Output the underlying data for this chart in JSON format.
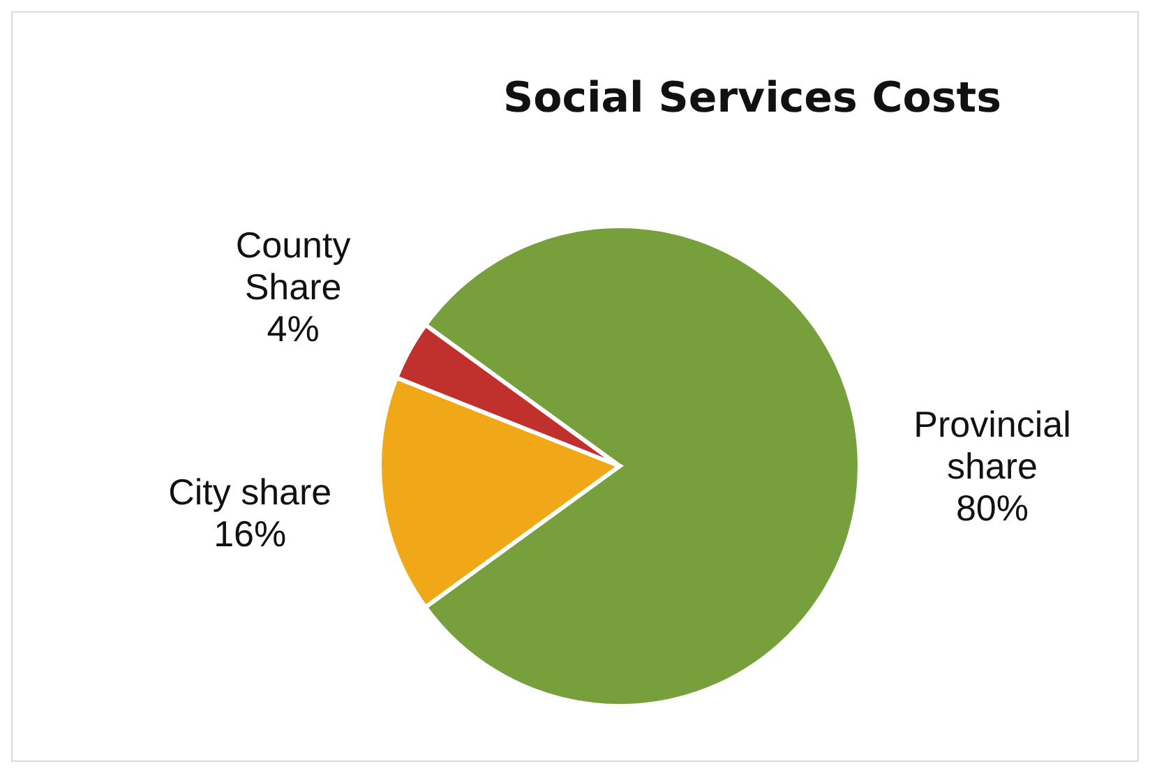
{
  "chart_data": {
    "type": "pie",
    "title": "Social Services Costs",
    "categories": [
      "Provincial share",
      "City share",
      "County Share"
    ],
    "values": [
      80,
      16,
      4
    ],
    "value_labels": [
      "80%",
      "16%",
      "4%"
    ],
    "colors": [
      "#77a03c",
      "#f0a818",
      "#c0302c"
    ]
  }
}
